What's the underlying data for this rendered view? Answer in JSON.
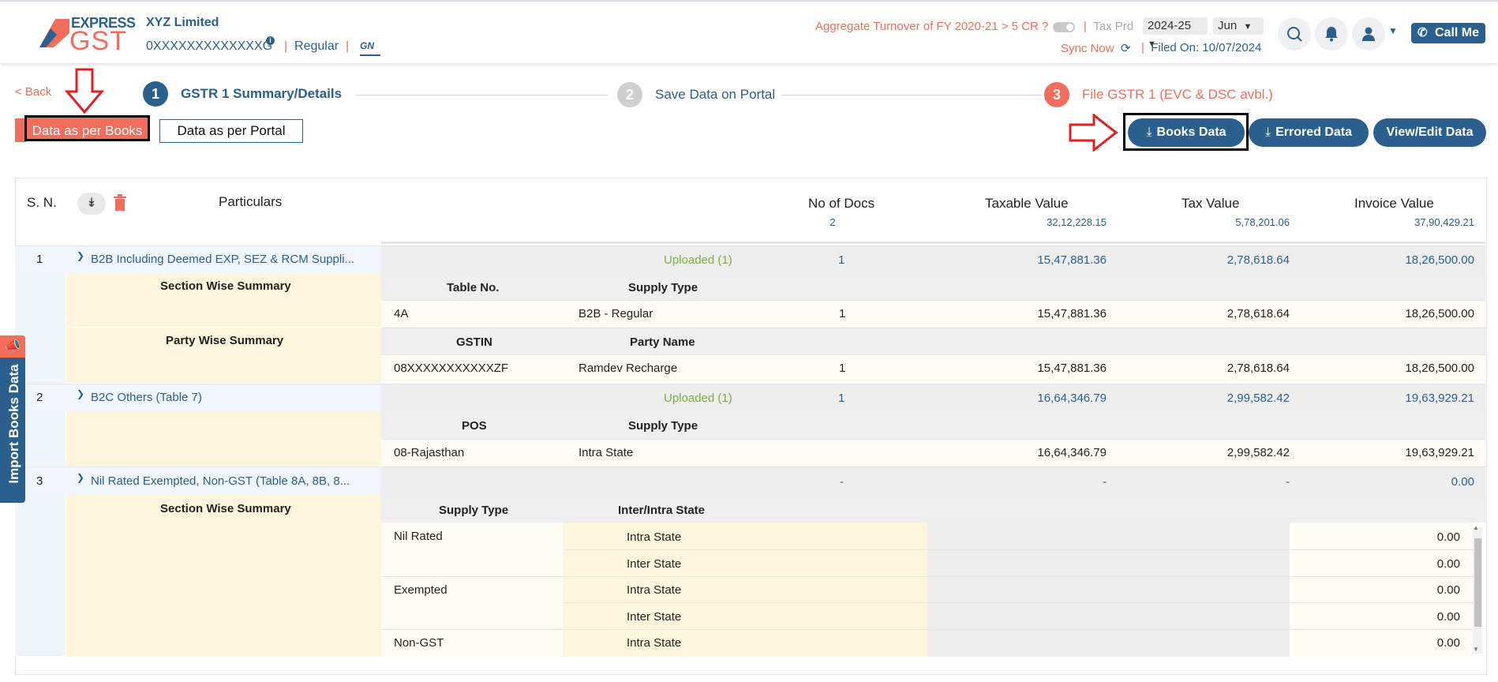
{
  "header": {
    "logo_express": "EXPRESS",
    "logo_gst": "GST",
    "company_name": "XYZ Limited",
    "gstin": "0XXXXXXXXXXXXXG",
    "info_mark": "i",
    "reg_type": "Regular",
    "gn_label": "GN",
    "aggregate_turnover": "Aggregate Turnover of FY 2020-21 > 5 CR ?",
    "tax_period_label": "Tax Prd",
    "fy_value": "2024-25",
    "month_value": "Jun",
    "sync_now": "Sync Now",
    "filed_on": "Filed On: 10/07/2024",
    "call_me": "Call Me",
    "separator": "|"
  },
  "nav": {
    "back": "< Back"
  },
  "steps": [
    {
      "num": "1",
      "label": "GSTR 1 Summary/Details"
    },
    {
      "num": "2",
      "label": "Save Data on Portal"
    },
    {
      "num": "3",
      "label": "File GSTR 1 (EVC & DSC avbl.)"
    }
  ],
  "tabs": {
    "books": "Data as per Books",
    "portal": "Data as per Portal"
  },
  "actions": {
    "books_data": "Books Data",
    "errored_data": "Errored Data",
    "view_edit": "View/Edit Data"
  },
  "table": {
    "headers": {
      "sn": "S. N.",
      "particulars": "Particulars",
      "no_of_docs": "No of Docs",
      "taxable_value": "Taxable Value",
      "tax_value": "Tax Value",
      "invoice_value": "Invoice Value"
    },
    "totals": {
      "no_of_docs": "2",
      "taxable_value": "32,12,228.15",
      "tax_value": "5,78,201.06",
      "invoice_value": "37,90,429.21"
    },
    "sections": [
      {
        "sn": "1",
        "title": "B2B Including Deemed EXP, SEZ & RCM Suppli...",
        "status": "Uploaded (1)",
        "docs": "1",
        "taxable": "15,47,881.36",
        "tax": "2,78,618.64",
        "invoice": "18,26,500.00",
        "summary1": {
          "label": "Section Wise Summary",
          "col1": "Table No.",
          "col2": "Supply Type",
          "row": {
            "c1": "4A",
            "c2": "B2B - Regular",
            "docs": "1",
            "taxable": "15,47,881.36",
            "tax": "2,78,618.64",
            "invoice": "18,26,500.00"
          }
        },
        "summary2": {
          "label": "Party Wise Summary",
          "col1": "GSTIN",
          "col2": "Party Name",
          "row": {
            "c1": "08XXXXXXXXXXXZF",
            "c2": "Ramdev Recharge",
            "docs": "1",
            "taxable": "15,47,881.36",
            "tax": "2,78,618.64",
            "invoice": "18,26,500.00"
          }
        }
      },
      {
        "sn": "2",
        "title": "B2C Others (Table 7)",
        "status": "Uploaded (1)",
        "docs": "1",
        "taxable": "16,64,346.79",
        "tax": "2,99,582.42",
        "invoice": "19,63,929.21",
        "summary1": {
          "col1": "POS",
          "col2": "Supply Type",
          "row": {
            "c1": "08-Rajasthan",
            "c2": "Intra State",
            "taxable": "16,64,346.79",
            "tax": "2,99,582.42",
            "invoice": "19,63,929.21"
          }
        }
      },
      {
        "sn": "3",
        "title": "Nil Rated Exempted, Non-GST (Table 8A, 8B, 8...",
        "docs": "-",
        "taxable": "-",
        "tax": "-",
        "invoice": "0.00",
        "summary1": {
          "label": "Section Wise Summary",
          "col1": "Supply Type",
          "col2": "Inter/Intra State",
          "rows": [
            {
              "c1": "Nil Rated",
              "c2": "Intra State",
              "invoice": "0.00"
            },
            {
              "c1": "",
              "c2": "Inter State",
              "invoice": "0.00"
            },
            {
              "c1": "Exempted",
              "c2": "Intra State",
              "invoice": "0.00"
            },
            {
              "c1": "",
              "c2": "Inter State",
              "invoice": "0.00"
            },
            {
              "c1": "Non-GST",
              "c2": "Intra State",
              "invoice": "0.00"
            }
          ]
        }
      }
    ]
  },
  "side_tab": {
    "label": "Import Books Data"
  },
  "colors": {
    "brand_blue": "#2b5f8e",
    "accent_orange": "#f26d5b",
    "green": "#7cae3f",
    "yellow_bg": "#fdf6dd"
  },
  "icons": {
    "logo": "express-gst-logo",
    "search": "search-icon",
    "bell": "bell-icon",
    "user": "user-icon",
    "phone": "phone-icon",
    "sync": "sync-icon",
    "expand_all": "double-chevron-down-icon",
    "delete": "trash-icon",
    "download": "download-icon",
    "chevron": "chevron-down-icon",
    "import": "megaphone-icon"
  }
}
